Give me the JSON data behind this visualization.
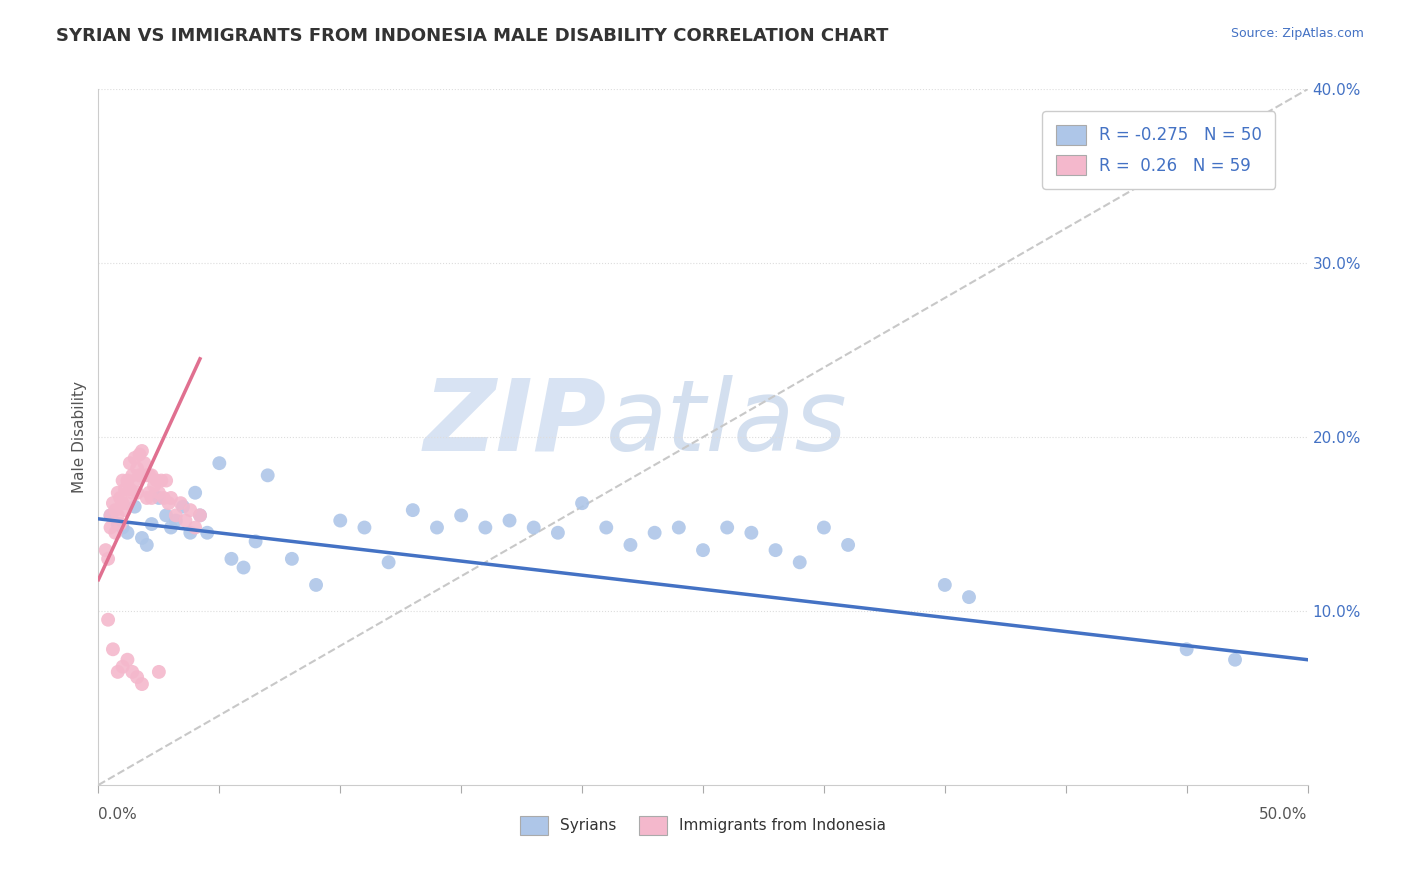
{
  "title": "SYRIAN VS IMMIGRANTS FROM INDONESIA MALE DISABILITY CORRELATION CHART",
  "source_text": "Source: ZipAtlas.com",
  "ylabel": "Male Disability",
  "xlim": [
    0.0,
    0.5
  ],
  "ylim": [
    0.0,
    0.4
  ],
  "yticks_right": [
    0.1,
    0.2,
    0.3,
    0.4
  ],
  "ytick_labels_right": [
    "10.0%",
    "20.0%",
    "30.0%",
    "40.0%"
  ],
  "blue_color": "#aec6e8",
  "pink_color": "#f4b8cc",
  "blue_line_color": "#4472c4",
  "pink_line_color": "#e07090",
  "ref_line_color": "#c8c8c8",
  "R_blue": -0.275,
  "N_blue": 50,
  "R_pink": 0.26,
  "N_pink": 59,
  "legend_blue_label": "Syrians",
  "legend_pink_label": "Immigrants from Indonesia",
  "watermark_zip": "ZIP",
  "watermark_atlas": "atlas",
  "blue_x": [
    0.005,
    0.008,
    0.01,
    0.012,
    0.015,
    0.018,
    0.02,
    0.022,
    0.025,
    0.028,
    0.03,
    0.032,
    0.035,
    0.038,
    0.04,
    0.042,
    0.045,
    0.05,
    0.055,
    0.06,
    0.065,
    0.07,
    0.08,
    0.09,
    0.1,
    0.11,
    0.12,
    0.13,
    0.14,
    0.15,
    0.16,
    0.17,
    0.18,
    0.19,
    0.2,
    0.21,
    0.22,
    0.23,
    0.24,
    0.25,
    0.26,
    0.27,
    0.28,
    0.29,
    0.3,
    0.31,
    0.35,
    0.36,
    0.45,
    0.47
  ],
  "blue_y": [
    0.155,
    0.15,
    0.148,
    0.145,
    0.16,
    0.142,
    0.138,
    0.15,
    0.165,
    0.155,
    0.148,
    0.152,
    0.16,
    0.145,
    0.168,
    0.155,
    0.145,
    0.185,
    0.13,
    0.125,
    0.14,
    0.178,
    0.13,
    0.115,
    0.152,
    0.148,
    0.128,
    0.158,
    0.148,
    0.155,
    0.148,
    0.152,
    0.148,
    0.145,
    0.162,
    0.148,
    0.138,
    0.145,
    0.148,
    0.135,
    0.148,
    0.145,
    0.135,
    0.128,
    0.148,
    0.138,
    0.115,
    0.108,
    0.078,
    0.072
  ],
  "pink_x": [
    0.003,
    0.004,
    0.005,
    0.005,
    0.006,
    0.007,
    0.007,
    0.008,
    0.008,
    0.009,
    0.009,
    0.01,
    0.01,
    0.011,
    0.011,
    0.012,
    0.012,
    0.013,
    0.013,
    0.014,
    0.014,
    0.015,
    0.015,
    0.016,
    0.016,
    0.017,
    0.017,
    0.018,
    0.018,
    0.019,
    0.02,
    0.02,
    0.021,
    0.021,
    0.022,
    0.022,
    0.023,
    0.024,
    0.025,
    0.026,
    0.027,
    0.028,
    0.029,
    0.03,
    0.032,
    0.034,
    0.036,
    0.038,
    0.04,
    0.042,
    0.004,
    0.006,
    0.008,
    0.01,
    0.012,
    0.014,
    0.016,
    0.018,
    0.025
  ],
  "pink_y": [
    0.135,
    0.13,
    0.155,
    0.148,
    0.162,
    0.158,
    0.145,
    0.168,
    0.155,
    0.165,
    0.15,
    0.175,
    0.162,
    0.17,
    0.158,
    0.175,
    0.162,
    0.185,
    0.17,
    0.178,
    0.168,
    0.188,
    0.175,
    0.182,
    0.168,
    0.19,
    0.178,
    0.192,
    0.178,
    0.185,
    0.178,
    0.165,
    0.178,
    0.168,
    0.178,
    0.165,
    0.172,
    0.175,
    0.168,
    0.175,
    0.165,
    0.175,
    0.162,
    0.165,
    0.155,
    0.162,
    0.152,
    0.158,
    0.148,
    0.155,
    0.095,
    0.078,
    0.065,
    0.068,
    0.072,
    0.065,
    0.062,
    0.058,
    0.065
  ],
  "blue_trend_x": [
    0.0,
    0.5
  ],
  "blue_trend_y": [
    0.153,
    0.072
  ],
  "pink_trend_x": [
    0.0,
    0.042
  ],
  "pink_trend_y": [
    0.118,
    0.245
  ],
  "ref_line_x": [
    0.0,
    0.5
  ],
  "ref_line_y": [
    0.0,
    0.4
  ]
}
